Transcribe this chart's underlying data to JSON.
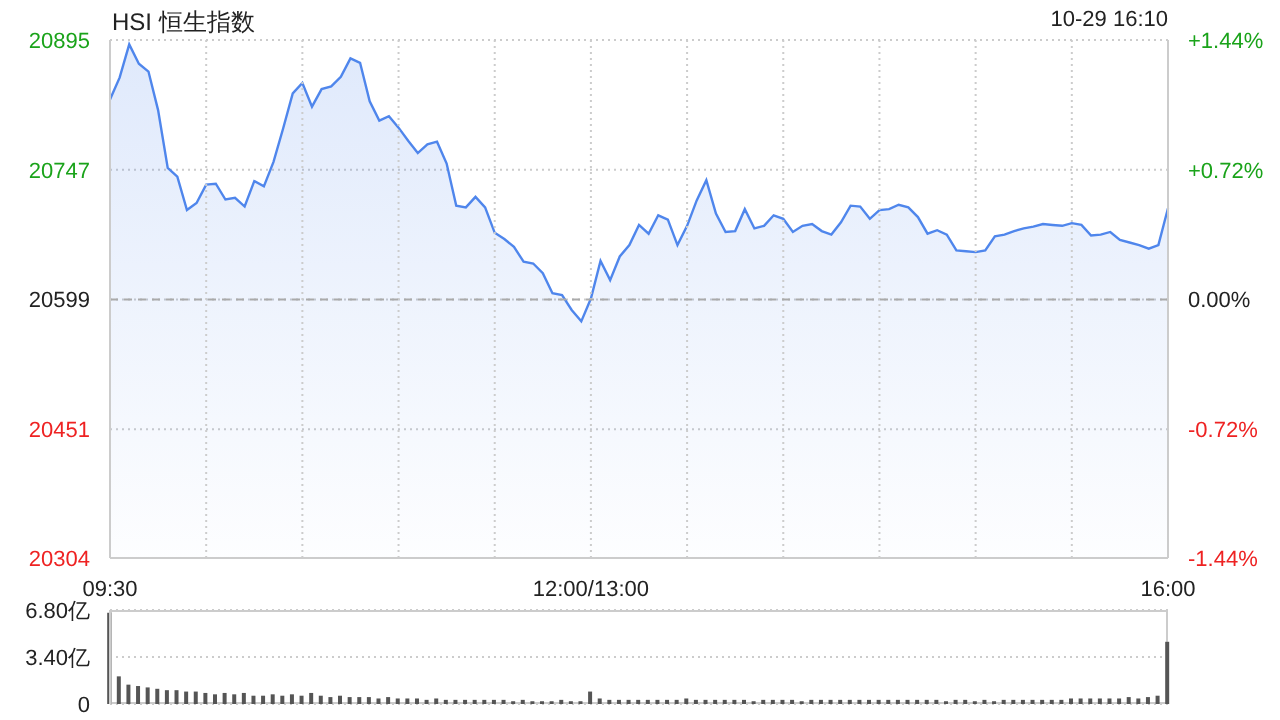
{
  "chart_data": [
    {
      "type": "area",
      "title": "HSI 恒生指数",
      "annotations": [
        "10-29 16:10"
      ],
      "categories": [
        "09:30",
        null,
        null,
        null,
        null,
        null,
        null,
        null,
        null,
        null,
        null,
        null,
        null,
        null,
        null,
        null,
        null,
        null,
        null,
        null,
        null,
        null,
        null,
        null,
        null,
        null,
        null,
        null,
        null,
        null,
        null,
        null,
        null,
        null,
        null,
        null,
        null,
        null,
        null,
        null,
        null,
        null,
        null,
        null,
        null,
        null,
        null,
        null,
        null,
        null,
        "12:00/13:00",
        null,
        null,
        null,
        null,
        null,
        null,
        null,
        null,
        null,
        null,
        null,
        null,
        null,
        null,
        null,
        null,
        null,
        null,
        null,
        null,
        null,
        null,
        null,
        null,
        null,
        null,
        null,
        null,
        null,
        null,
        null,
        null,
        null,
        null,
        null,
        null,
        null,
        null,
        null,
        null,
        null,
        null,
        null,
        null,
        null,
        null,
        null,
        null,
        null,
        null,
        null,
        null,
        null,
        null,
        null,
        null,
        null,
        null,
        null,
        "16:00"
      ],
      "series": [
        {
          "color": "#4f86ec",
          "values": [
            20827,
            20852,
            20890,
            20868,
            20859,
            20815,
            20749,
            20739,
            20701,
            20709,
            20730,
            20731,
            20713,
            20715,
            20705,
            20734,
            20728,
            20756,
            20794,
            20834,
            20846,
            20819,
            20839,
            20842,
            20853,
            20874,
            20869,
            20825,
            20803,
            20808,
            20795,
            20780,
            20766,
            20776,
            20779,
            20754,
            20706,
            20704,
            20716,
            20704,
            20675,
            20668,
            20659,
            20642,
            20640,
            20629,
            20606,
            20604,
            20587,
            20574,
            20600,
            20643,
            20621,
            20648,
            20661,
            20684,
            20674,
            20695,
            20690,
            20661,
            20683,
            20712,
            20735,
            20697,
            20676,
            20677,
            20702,
            20680,
            20683,
            20695,
            20691,
            20676,
            20683,
            20685,
            20677,
            20673,
            20687,
            20706,
            20705,
            20691,
            20701,
            20702,
            20707,
            20704,
            20693,
            20674,
            20678,
            20673,
            20655,
            20654,
            20653,
            20655,
            20671,
            20673,
            20677,
            20680,
            20682,
            20685,
            20684,
            20683,
            20686,
            20684,
            20672,
            20673,
            20676,
            20667,
            20664,
            20661,
            20657,
            20661,
            20703
          ]
        }
      ],
      "ylim": [
        20304,
        20895
      ],
      "yticks": [
        20304,
        20451,
        20599,
        20747,
        20895
      ],
      "y2lim": [
        -1.44,
        1.44
      ],
      "y2ticks": [
        {
          "value": -1.44,
          "label": "-1.44%"
        },
        {
          "value": -0.72,
          "label": "-0.72%"
        },
        {
          "value": 0,
          "label": "0.00%"
        },
        {
          "value": 0.72,
          "label": "+0.72%"
        },
        {
          "value": 1.44,
          "label": "+1.44%"
        }
      ],
      "ref_lines": [
        {
          "axis": "y",
          "value": 20599,
          "color": "#aaaaaa",
          "line_style": "dashed"
        }
      ],
      "grid": true,
      "legend": false
    },
    {
      "type": "bar",
      "tick_labels": "y",
      "grid": "y",
      "categories": [
        null,
        null,
        null,
        null,
        null,
        null,
        null,
        null,
        null,
        null,
        null,
        null,
        null,
        null,
        null,
        null,
        null,
        null,
        null,
        null,
        null,
        null,
        null,
        null,
        null,
        null,
        null,
        null,
        null,
        null,
        null,
        null,
        null,
        null,
        null,
        null,
        null,
        null,
        null,
        null,
        null,
        null,
        null,
        null,
        null,
        null,
        null,
        null,
        null,
        null,
        null,
        null,
        null,
        null,
        null,
        null,
        null,
        null,
        null,
        null,
        null,
        null,
        null,
        null,
        null,
        null,
        null,
        null,
        null,
        null,
        null,
        null,
        null,
        null,
        null,
        null,
        null,
        null,
        null,
        null,
        null,
        null,
        null,
        null,
        null,
        null,
        null,
        null,
        null,
        null,
        null,
        null,
        null,
        null,
        null,
        null,
        null,
        null,
        null,
        null,
        null,
        null,
        null,
        null,
        null,
        null,
        null,
        null,
        null,
        null,
        null
      ],
      "values": [
        6.6,
        2.0,
        1.4,
        1.3,
        1.2,
        1.1,
        1.0,
        1.0,
        0.9,
        0.9,
        0.8,
        0.7,
        0.8,
        0.7,
        0.8,
        0.6,
        0.6,
        0.7,
        0.6,
        0.7,
        0.6,
        0.8,
        0.6,
        0.5,
        0.6,
        0.5,
        0.5,
        0.5,
        0.4,
        0.5,
        0.4,
        0.4,
        0.4,
        0.3,
        0.4,
        0.3,
        0.3,
        0.3,
        0.3,
        0.3,
        0.3,
        0.3,
        0.2,
        0.3,
        0.2,
        0.2,
        0.2,
        0.3,
        0.2,
        0.2,
        0.9,
        0.4,
        0.3,
        0.3,
        0.3,
        0.3,
        0.3,
        0.3,
        0.3,
        0.3,
        0.4,
        0.3,
        0.3,
        0.3,
        0.3,
        0.3,
        0.3,
        0.2,
        0.3,
        0.3,
        0.3,
        0.3,
        0.2,
        0.3,
        0.3,
        0.3,
        0.3,
        0.3,
        0.3,
        0.3,
        0.3,
        0.3,
        0.3,
        0.3,
        0.3,
        0.3,
        0.3,
        0.2,
        0.3,
        0.3,
        0.2,
        0.3,
        0.2,
        0.3,
        0.3,
        0.3,
        0.3,
        0.3,
        0.3,
        0.3,
        0.4,
        0.4,
        0.4,
        0.4,
        0.4,
        0.4,
        0.5,
        0.4,
        0.5,
        0.6,
        4.5
      ],
      "color": "#555555",
      "ylim": [
        0,
        6.8
      ],
      "yticks": [
        0,
        {
          "value": 3.4,
          "label": "3.40亿"
        },
        {
          "value": 6.8,
          "label": "6.80亿"
        }
      ],
      "legend": false
    }
  ]
}
